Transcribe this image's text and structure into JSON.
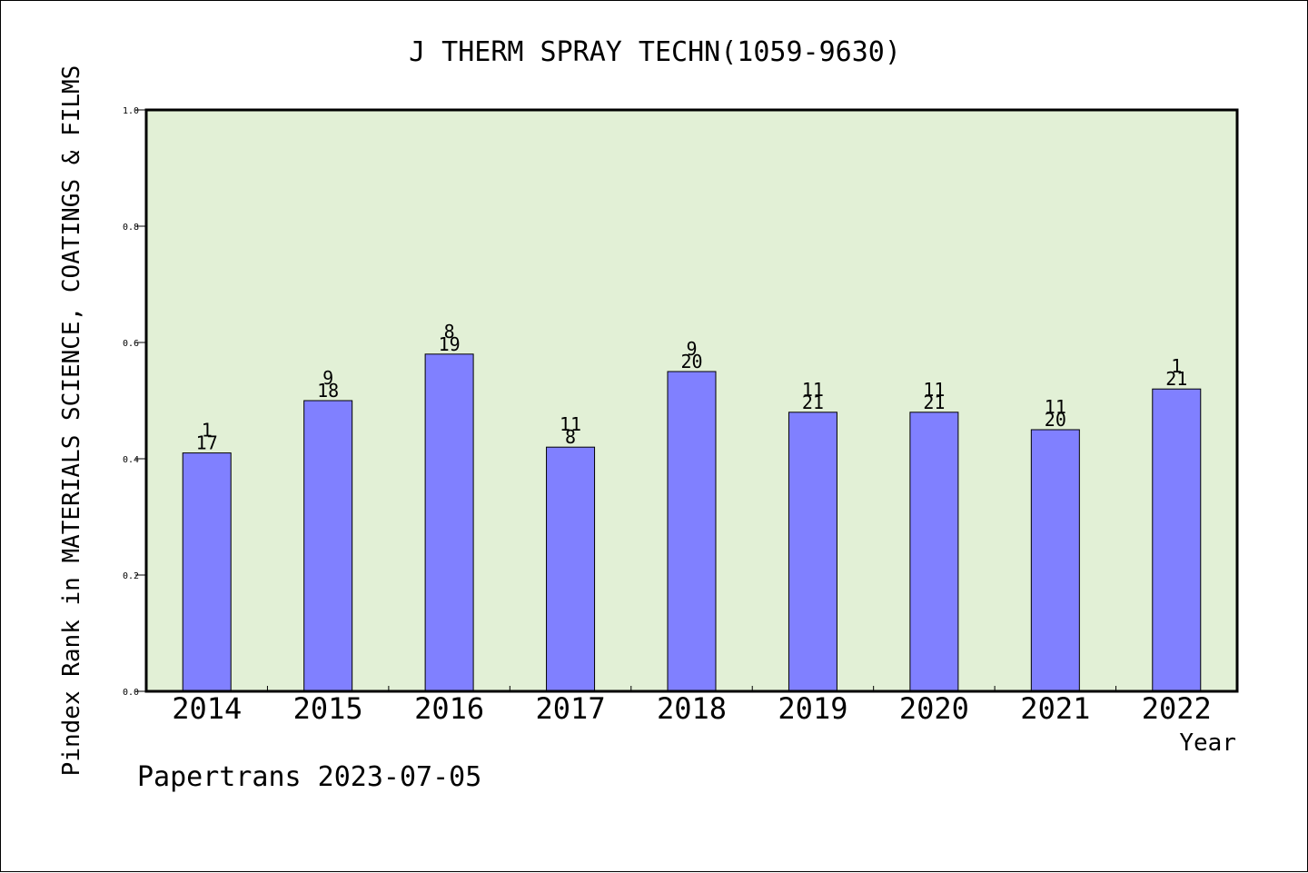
{
  "chart_data": {
    "type": "bar",
    "title": "J THERM SPRAY TECHN(1059-9630)",
    "xlabel": "Year",
    "ylabel": "Pindex Rank in MATERIALS SCIENCE, COATINGS & FILMS",
    "ylim": [
      0,
      1.0
    ],
    "yticks": [
      "0.0",
      "0.2",
      "0.4",
      "0.6",
      "0.8",
      "1.0"
    ],
    "categories": [
      "2014",
      "2015",
      "2016",
      "2017",
      "2018",
      "2019",
      "2020",
      "2021",
      "2022"
    ],
    "values": [
      0.41,
      0.5,
      0.58,
      0.42,
      0.55,
      0.48,
      0.48,
      0.45,
      0.52
    ],
    "labels_top": [
      "1",
      "9",
      "8",
      "11",
      "9",
      "11",
      "11",
      "11",
      "1"
    ],
    "labels_bottom": [
      "17",
      "18",
      "19",
      "8",
      "20",
      "21",
      "21",
      "20",
      "21"
    ],
    "grid": false,
    "bar_color": "#8080ff",
    "plot_background": "#e2f0d6",
    "footer": "Papertrans 2023-07-05"
  }
}
